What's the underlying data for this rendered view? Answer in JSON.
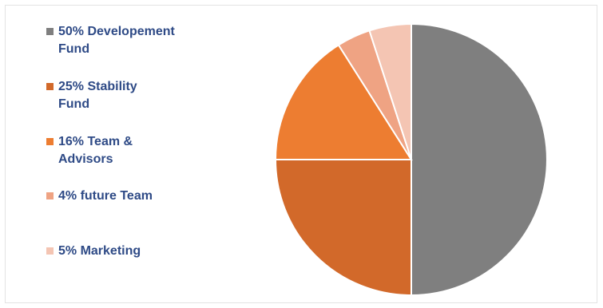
{
  "chart_data": {
    "type": "pie",
    "title": "",
    "legend_position": "left",
    "start_angle_deg": 0,
    "direction": "clockwise",
    "slices": [
      {
        "label": "50% Developement Fund",
        "value": 50,
        "color": "#7f7f7f"
      },
      {
        "label": "25% Stability Fund",
        "value": 25,
        "color": "#d2692a"
      },
      {
        "label": "16% Team & Advisors",
        "value": 16,
        "color": "#ed7d31"
      },
      {
        "label": "4% future Team",
        "value": 4,
        "color": "#efa383"
      },
      {
        "label": "5% Marketing",
        "value": 5,
        "color": "#f4c5b3"
      }
    ]
  }
}
